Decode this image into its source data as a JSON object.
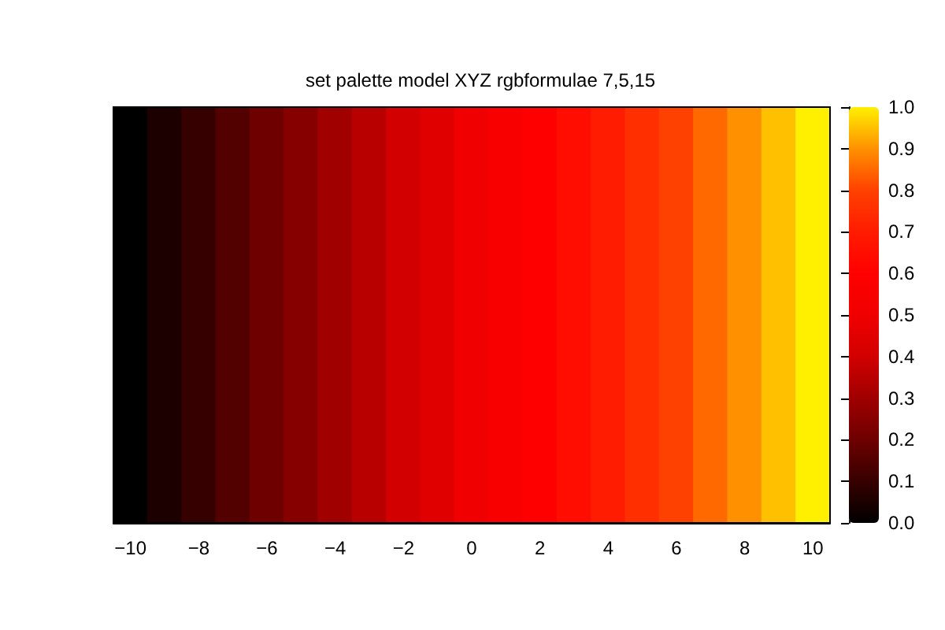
{
  "chart_data": {
    "type": "heatmap",
    "title": "set palette model XYZ rgbformulae 7,5,15",
    "categories": [
      "−10",
      null,
      "−8",
      null,
      "−6",
      null,
      "−4",
      null,
      "−2",
      null,
      "0",
      null,
      "2",
      null,
      "4",
      null,
      "6",
      null,
      "8",
      null,
      "10"
    ],
    "y_categories": [
      null
    ],
    "cells": [
      [
        0,
        0.05,
        0.1,
        0.15,
        0.2,
        0.25,
        0.3,
        0.35,
        0.4,
        0.45,
        0.5,
        0.55,
        0.6,
        0.65,
        0.7,
        0.75,
        0.8,
        0.85,
        0.9,
        0.95,
        1
      ]
    ],
    "clim": [
      0,
      1
    ],
    "cticks": [
      {
        "value": 0,
        "label": "0.0"
      },
      {
        "value": 0.1,
        "label": "0.1"
      },
      {
        "value": 0.2,
        "label": "0.2"
      },
      {
        "value": 0.3,
        "label": "0.3"
      },
      {
        "value": 0.4,
        "label": "0.4"
      },
      {
        "value": 0.5,
        "label": "0.5"
      },
      {
        "value": 0.6,
        "label": "0.6"
      },
      {
        "value": 0.7,
        "label": "0.7"
      },
      {
        "value": 0.8,
        "label": "0.8"
      },
      {
        "value": 0.9,
        "label": "0.9"
      },
      {
        "value": 1,
        "label": "1.0"
      }
    ],
    "tick_labels": "x"
  }
}
